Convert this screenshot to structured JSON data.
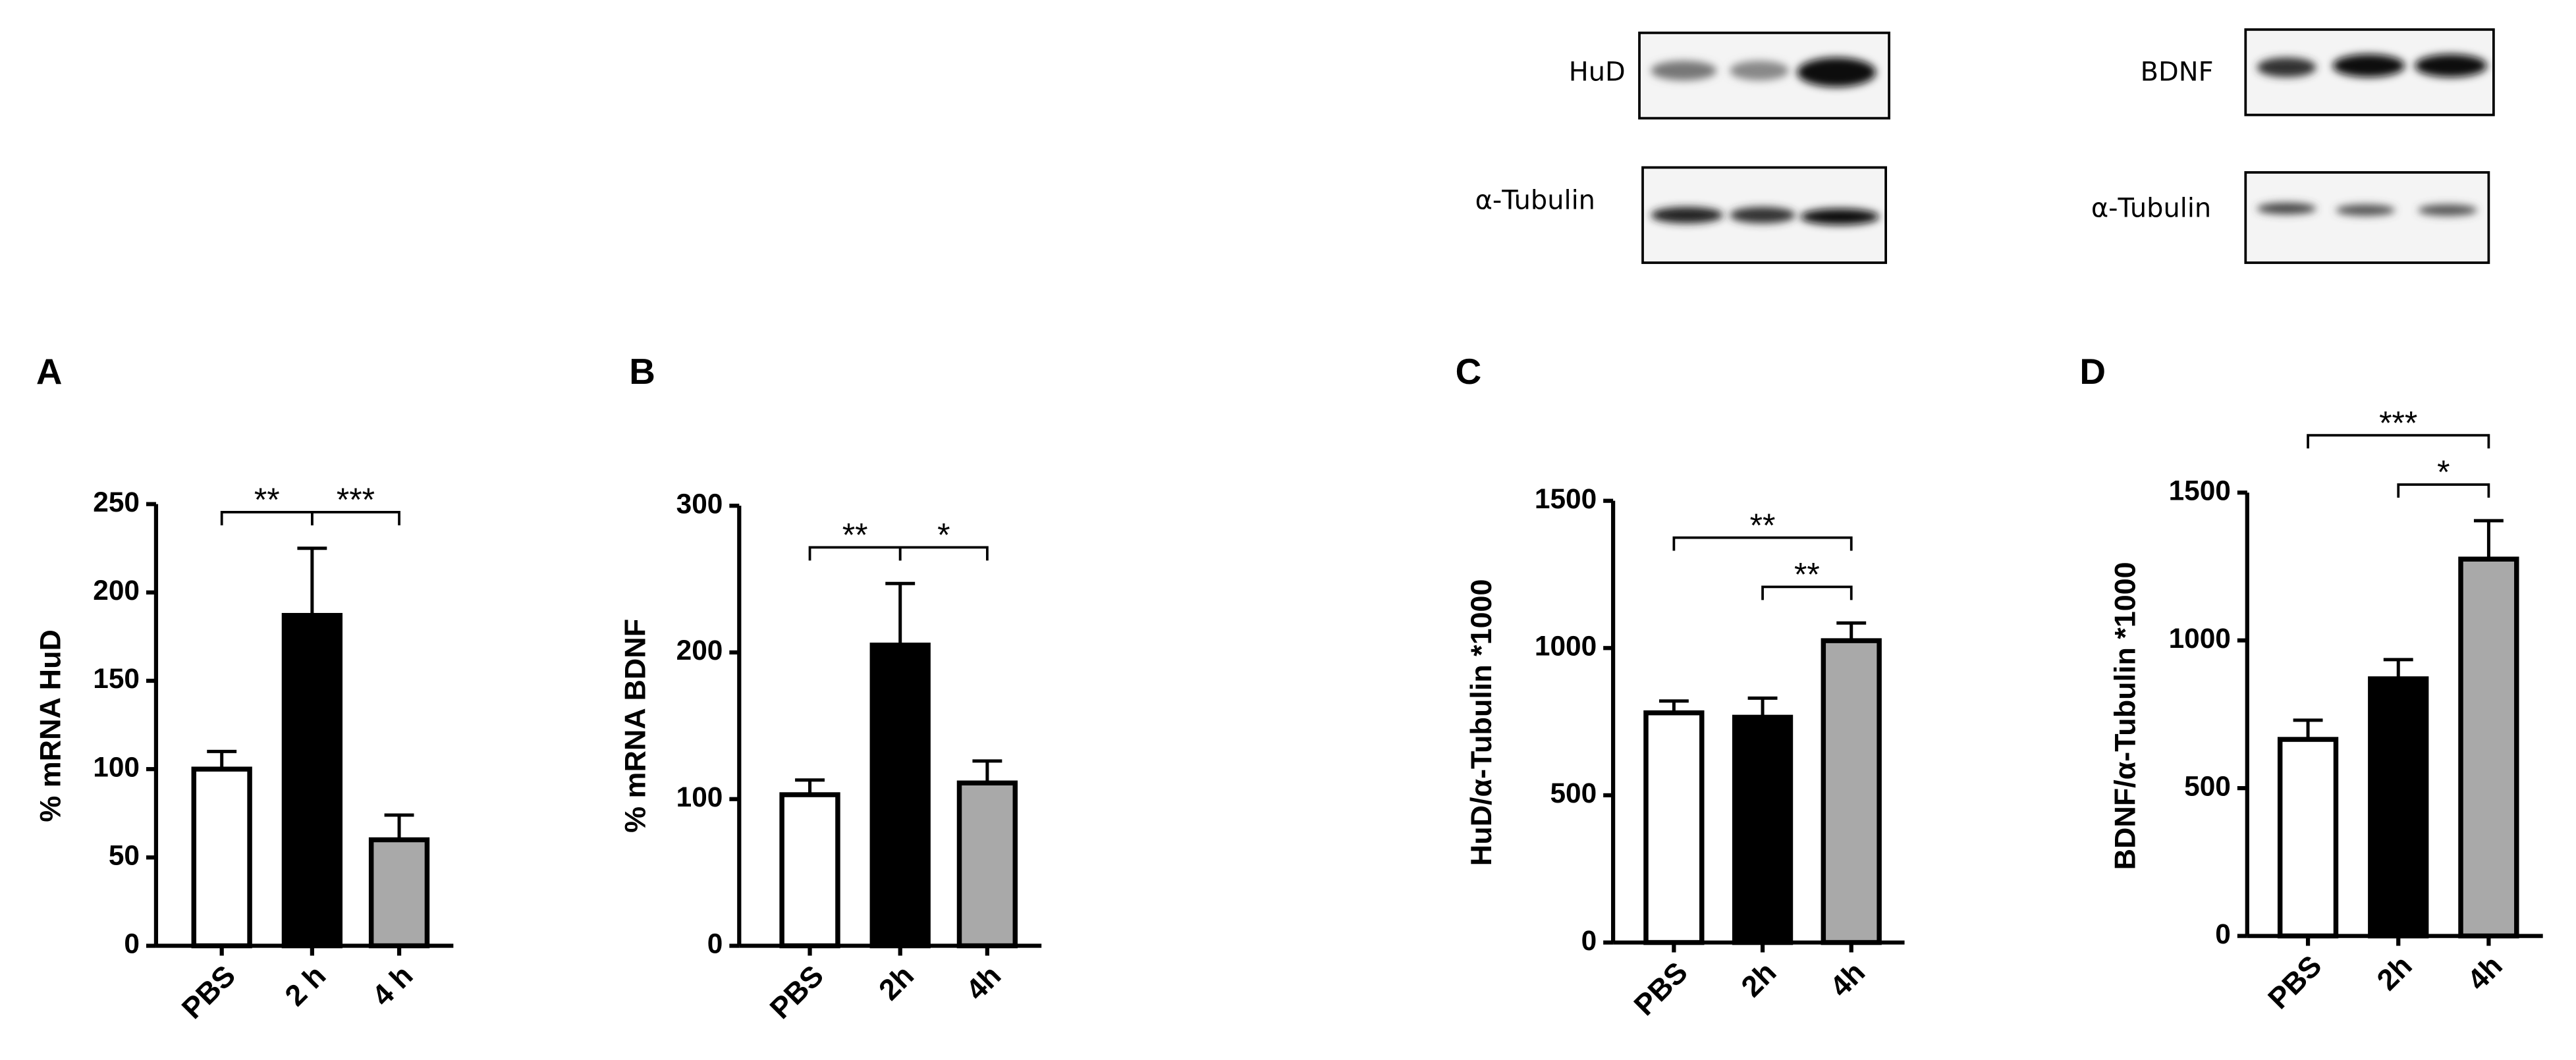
{
  "blots": [
    {
      "label": "HuD",
      "loading_label": "α-Tubulin"
    },
    {
      "label": "BDNF",
      "loading_label": "α-Tubulin"
    }
  ],
  "chart_data": [
    {
      "type": "bar",
      "panel": "A",
      "ylabel": "% mRNA HuD",
      "categories": [
        "PBS",
        "2 h",
        "4 h"
      ],
      "values": [
        100,
        187,
        60
      ],
      "errors": [
        10,
        38,
        14
      ],
      "colors": [
        "#ffffff",
        "#000000",
        "#a9a9a9"
      ],
      "ylim": [
        0,
        250
      ],
      "yticks": [
        0,
        50,
        100,
        150,
        200,
        250
      ],
      "annotations": [
        {
          "text": "**",
          "between": [
            "PBS",
            "2 h"
          ]
        },
        {
          "text": "***",
          "between": [
            "2 h",
            "4 h"
          ]
        }
      ]
    },
    {
      "type": "bar",
      "panel": "B",
      "ylabel": "% mRNA BDNF",
      "categories": [
        "PBS",
        "2h",
        "4h"
      ],
      "values": [
        103,
        205,
        111
      ],
      "errors": [
        10,
        42,
        15
      ],
      "colors": [
        "#ffffff",
        "#000000",
        "#a9a9a9"
      ],
      "ylim": [
        0,
        300
      ],
      "yticks": [
        0,
        100,
        200,
        300
      ],
      "annotations": [
        {
          "text": "**",
          "between": [
            "PBS",
            "2h"
          ]
        },
        {
          "text": "*",
          "between": [
            "2h",
            "4h"
          ]
        }
      ]
    },
    {
      "type": "bar",
      "panel": "C",
      "ylabel": "HuD/α-Tubulin *1000",
      "categories": [
        "PBS",
        "2h",
        "4h"
      ],
      "values": [
        780,
        765,
        1025
      ],
      "errors": [
        40,
        65,
        60
      ],
      "colors": [
        "#ffffff",
        "#000000",
        "#a9a9a9"
      ],
      "ylim": [
        0,
        1500
      ],
      "yticks": [
        0,
        500,
        1000,
        1500
      ],
      "annotations": [
        {
          "text": "**",
          "between": [
            "PBS",
            "4h"
          ]
        },
        {
          "text": "**",
          "between": [
            "2h",
            "4h"
          ]
        }
      ]
    },
    {
      "type": "bar",
      "panel": "D",
      "ylabel": "BDNF/α-Tubulin *1000",
      "categories": [
        "PBS",
        "2h",
        "4h"
      ],
      "values": [
        665,
        870,
        1275
      ],
      "errors": [
        65,
        65,
        130
      ],
      "colors": [
        "#ffffff",
        "#000000",
        "#a9a9a9"
      ],
      "ylim": [
        0,
        1500
      ],
      "yticks": [
        0,
        500,
        1000,
        1500
      ],
      "annotations": [
        {
          "text": "***",
          "between": [
            "PBS",
            "4h"
          ]
        },
        {
          "text": "*",
          "between": [
            "2h",
            "4h"
          ]
        }
      ]
    }
  ]
}
